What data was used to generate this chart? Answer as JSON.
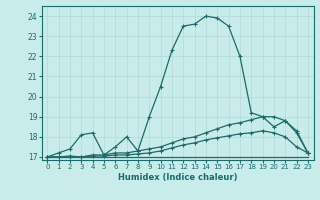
{
  "title": "",
  "xlabel": "Humidex (Indice chaleur)",
  "ylabel": "",
  "background_color": "#c8ecea",
  "grid_color": "#b5d8d5",
  "line_color": "#1a6b6b",
  "xlim": [
    -0.5,
    23.5
  ],
  "ylim": [
    16.85,
    24.5
  ],
  "yticks": [
    17,
    18,
    19,
    20,
    21,
    22,
    23,
    24
  ],
  "xticks": [
    0,
    1,
    2,
    3,
    4,
    5,
    6,
    7,
    8,
    9,
    10,
    11,
    12,
    13,
    14,
    15,
    16,
    17,
    18,
    19,
    20,
    21,
    22,
    23
  ],
  "series": [
    {
      "x": [
        0,
        1,
        2,
        3,
        4,
        5,
        6,
        7,
        8,
        9,
        10,
        11,
        12,
        13,
        14,
        15,
        16,
        17,
        18,
        19,
        20,
        21,
        22,
        23
      ],
      "y": [
        17.0,
        17.2,
        17.4,
        18.1,
        18.2,
        17.1,
        17.5,
        18.0,
        17.3,
        19.0,
        20.5,
        22.3,
        23.5,
        23.6,
        24.0,
        23.9,
        23.5,
        22.0,
        19.2,
        19.0,
        18.5,
        18.8,
        18.2,
        17.2
      ]
    },
    {
      "x": [
        0,
        1,
        2,
        3,
        4,
        5,
        6,
        7,
        8,
        9,
        10,
        11,
        12,
        13,
        14,
        15,
        16,
        17,
        18,
        19,
        20,
        21,
        22,
        23
      ],
      "y": [
        17.0,
        17.0,
        17.05,
        17.0,
        17.1,
        17.1,
        17.2,
        17.2,
        17.3,
        17.4,
        17.5,
        17.7,
        17.9,
        18.0,
        18.2,
        18.4,
        18.6,
        18.7,
        18.85,
        19.0,
        19.0,
        18.8,
        18.3,
        17.2
      ]
    },
    {
      "x": [
        0,
        1,
        2,
        3,
        4,
        5,
        6,
        7,
        8,
        9,
        10,
        11,
        12,
        13,
        14,
        15,
        16,
        17,
        18,
        19,
        20,
        21,
        22,
        23
      ],
      "y": [
        17.0,
        17.0,
        17.0,
        17.0,
        17.05,
        17.05,
        17.1,
        17.1,
        17.15,
        17.2,
        17.3,
        17.45,
        17.6,
        17.7,
        17.85,
        17.95,
        18.05,
        18.15,
        18.2,
        18.3,
        18.2,
        18.0,
        17.5,
        17.2
      ]
    },
    {
      "x": [
        0,
        23
      ],
      "y": [
        17.0,
        17.0
      ]
    }
  ]
}
